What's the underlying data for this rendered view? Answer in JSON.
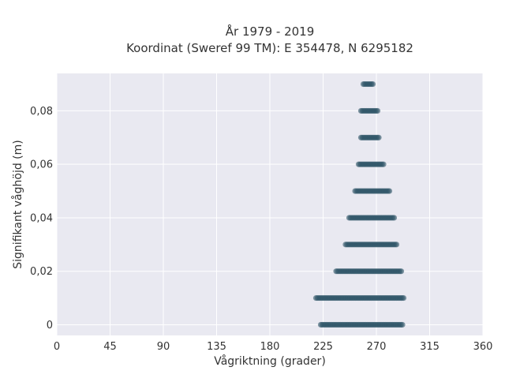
{
  "chart_data": {
    "type": "scatter",
    "title": "År 1979 - 2019",
    "subtitle": "Koordinat (Sweref 99 TM): E 354478, N 6295182",
    "xlabel": "Vågriktning (grader)",
    "ylabel": "Signifikant våghöjd (m)",
    "xlim": [
      0,
      360
    ],
    "ylim": [
      -0.004,
      0.094
    ],
    "x_ticks": [
      0,
      45,
      90,
      135,
      180,
      225,
      270,
      315,
      360
    ],
    "x_tick_labels": [
      "0",
      "45",
      "90",
      "135",
      "180",
      "225",
      "270",
      "315",
      "360"
    ],
    "y_ticks": [
      0,
      0.02,
      0.04,
      0.06,
      0.08
    ],
    "y_tick_labels": [
      "0",
      "0,02",
      "0,04",
      "0,06",
      "0,08"
    ],
    "grid": true,
    "background": "#e9e9f1",
    "marker_color": "#2f5568",
    "series": [
      {
        "bands": [
          {
            "y": 0.0,
            "x_min": 223,
            "x_max": 292
          },
          {
            "y": 0.01,
            "x_min": 219,
            "x_max": 293
          },
          {
            "y": 0.02,
            "x_min": 236,
            "x_max": 291
          },
          {
            "y": 0.03,
            "x_min": 244,
            "x_max": 287
          },
          {
            "y": 0.04,
            "x_min": 247,
            "x_max": 285
          },
          {
            "y": 0.05,
            "x_min": 252,
            "x_max": 281
          },
          {
            "y": 0.06,
            "x_min": 255,
            "x_max": 276
          },
          {
            "y": 0.07,
            "x_min": 257,
            "x_max": 272
          },
          {
            "y": 0.08,
            "x_min": 257,
            "x_max": 271
          },
          {
            "y": 0.09,
            "x_min": 259,
            "x_max": 267
          }
        ]
      }
    ]
  }
}
